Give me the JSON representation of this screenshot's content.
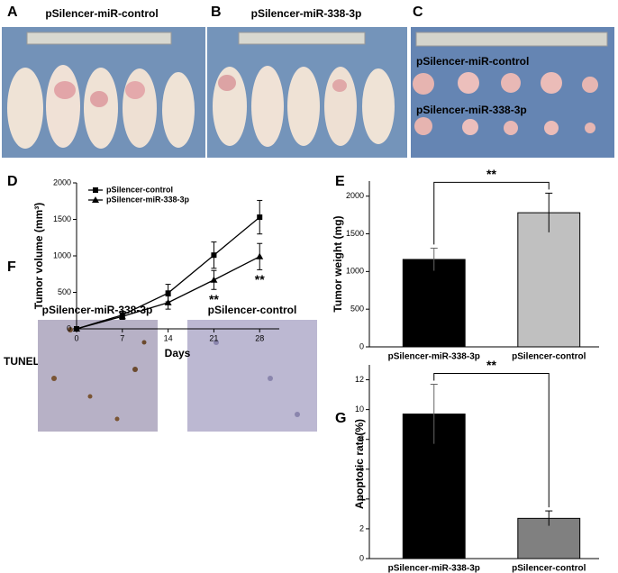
{
  "panels": [
    {
      "label": "A",
      "title": "pSilencer-miR-control"
    },
    {
      "label": "B",
      "title": "pSilencer-miR-338-3p"
    },
    {
      "label": "C",
      "rows": [
        "pSilencer-miR-control",
        "pSilencer-miR-338-3p"
      ]
    },
    {
      "label": "F",
      "titles": [
        "pSilencer-miR-338-3p",
        "pSilencer-control"
      ],
      "row_label": "TUNEL"
    }
  ],
  "chart_data": [
    {
      "type": "line",
      "label": "D",
      "xlabel": "Days",
      "ylabel": "Tumor volume (mm³)",
      "x": [
        0,
        7,
        14,
        21,
        28
      ],
      "xlim": [
        0,
        31
      ],
      "xticks": [
        0,
        7,
        14,
        21,
        28
      ],
      "ylim": [
        0,
        2000
      ],
      "yticks": [
        0,
        500,
        1000,
        1500,
        2000
      ],
      "legend": "upper left",
      "series": [
        {
          "name": "pSilencer-control",
          "color": "#000000",
          "marker": "square",
          "values": [
            0,
            190,
            490,
            1010,
            1530
          ],
          "errors": [
            0,
            50,
            120,
            180,
            230
          ]
        },
        {
          "name": "pSilencer-miR-338-3p",
          "color": "#000000",
          "marker": "triangle",
          "values": [
            0,
            170,
            360,
            670,
            990
          ],
          "errors": [
            0,
            40,
            90,
            130,
            180
          ]
        }
      ],
      "annotations": [
        {
          "text": "**",
          "x": 21
        },
        {
          "text": "**",
          "x": 28
        }
      ]
    },
    {
      "type": "bar",
      "label": "E",
      "ylabel": "Tumor weight (mg)",
      "categories": [
        "pSilencer-miR-338-3p",
        "pSilencer-control"
      ],
      "values": [
        1160,
        1780
      ],
      "errors": [
        150,
        260
      ],
      "colors": [
        "#000000",
        "#c0c0c0"
      ],
      "ylim": [
        0,
        2200
      ],
      "yticks": [
        0,
        500,
        1000,
        1500,
        2000
      ],
      "annotation": "**"
    },
    {
      "type": "bar",
      "label": "G",
      "ylabel": "Apoptotic rate(%)",
      "categories": [
        "pSilencer-miR-338-3p",
        "pSilencer-control"
      ],
      "values": [
        9.7,
        2.7
      ],
      "errors": [
        2.0,
        0.5
      ],
      "colors": [
        "#000000",
        "#808080"
      ],
      "ylim": [
        0,
        13
      ],
      "yticks": [
        0,
        2,
        4,
        6,
        8,
        10,
        12
      ],
      "annotation": "**"
    }
  ]
}
